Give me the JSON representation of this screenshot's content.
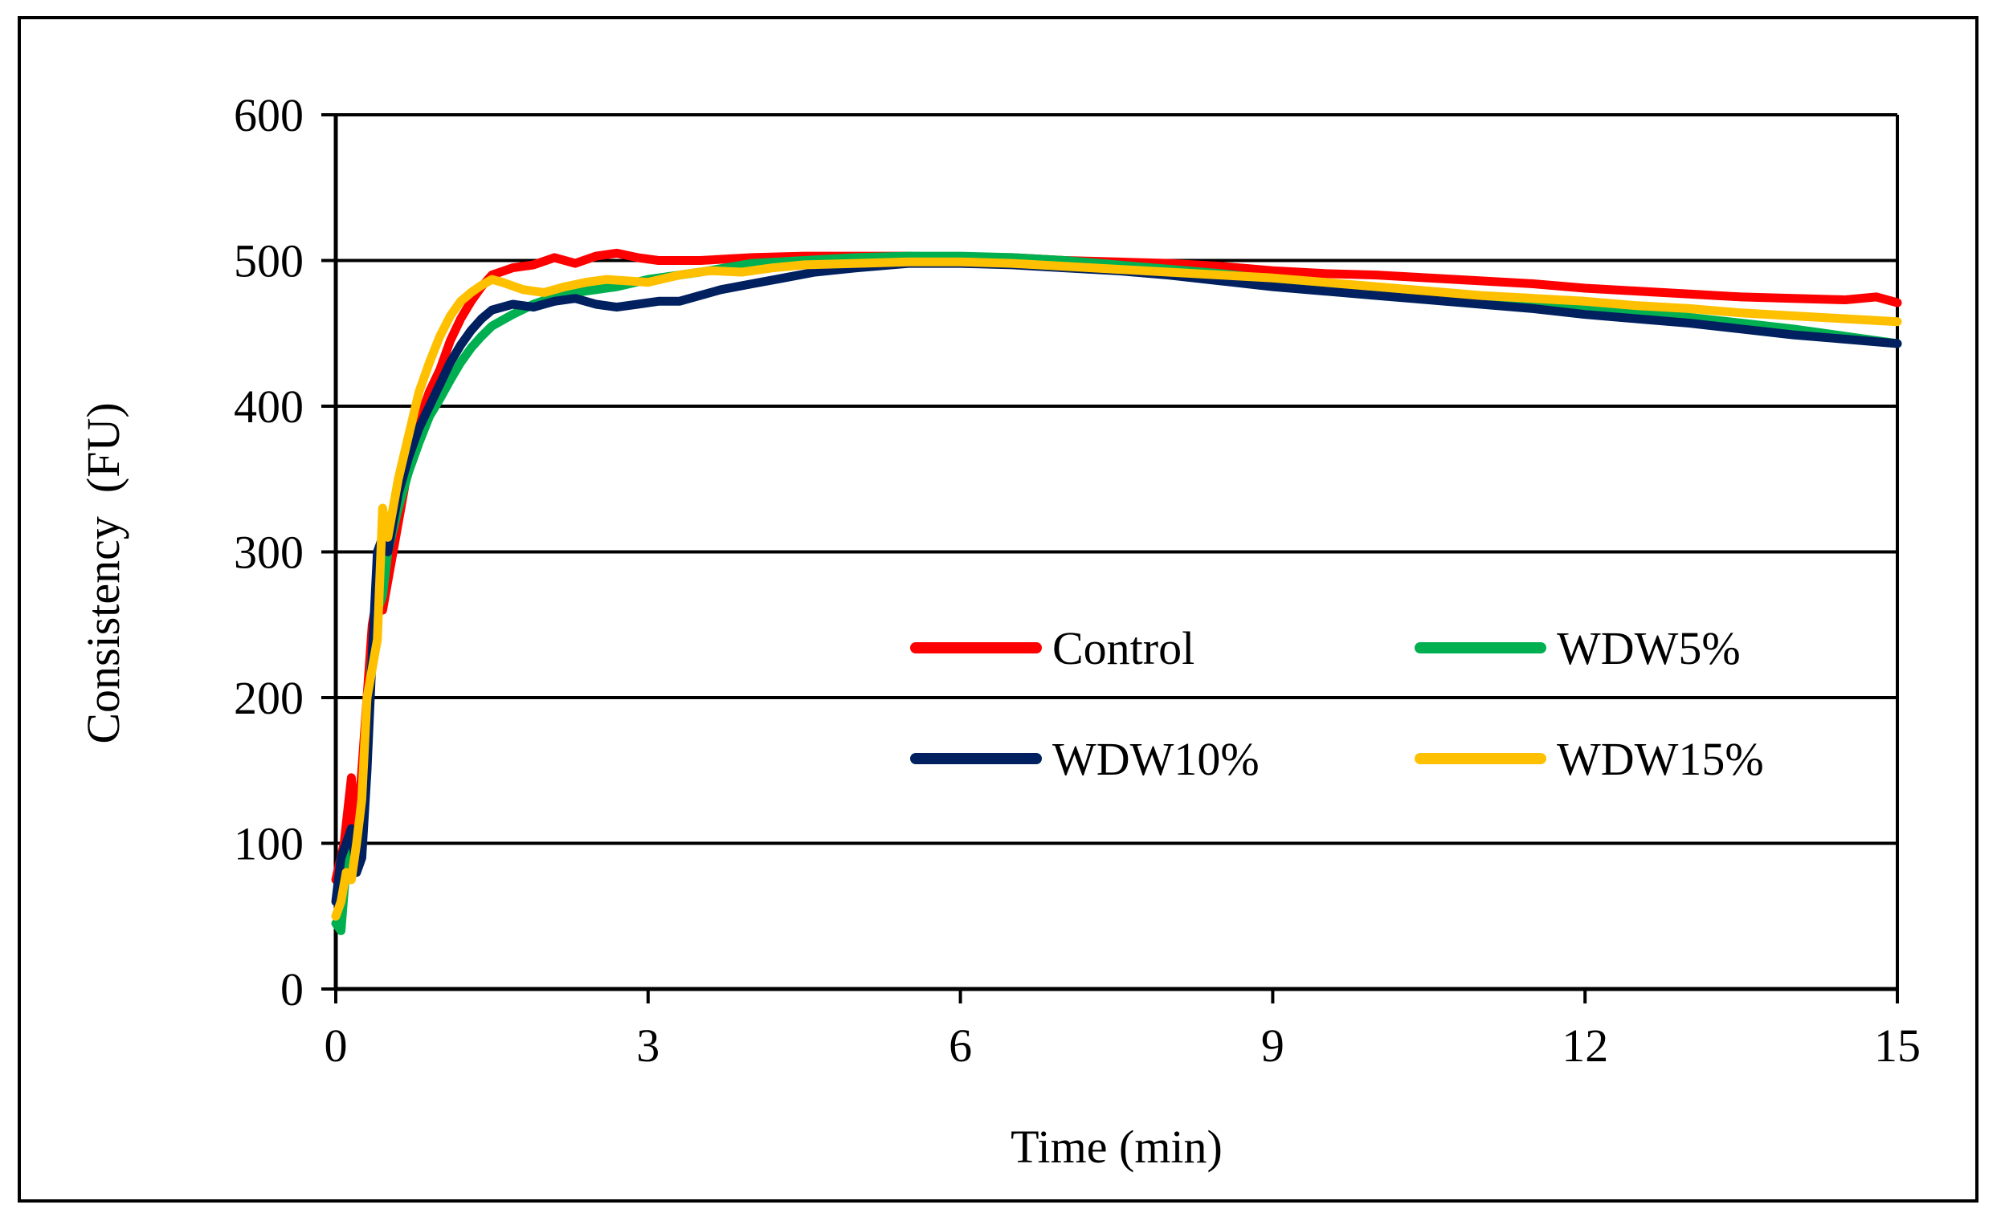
{
  "chart_data": {
    "type": "line",
    "title": "",
    "xlabel": "Time (min)",
    "ylabel": "Consistency  (FU)",
    "xlim": [
      0,
      15
    ],
    "ylim": [
      0,
      600
    ],
    "xticks": [
      0,
      3,
      6,
      9,
      12,
      15
    ],
    "yticks": [
      0,
      100,
      200,
      300,
      400,
      500,
      600
    ],
    "xtick_labels": [
      "0",
      "3",
      "6",
      "9",
      "12",
      "15"
    ],
    "ytick_labels": [
      "0",
      "100",
      "200",
      "300",
      "400",
      "500",
      "600"
    ],
    "grid": "horizontal",
    "legend_position": "center-right",
    "series": [
      {
        "name": "Control",
        "color": "#FF0000",
        "x": [
          0,
          0.08,
          0.15,
          0.2,
          0.25,
          0.3,
          0.35,
          0.4,
          0.45,
          0.5,
          0.6,
          0.7,
          0.8,
          0.9,
          1.0,
          1.1,
          1.2,
          1.3,
          1.4,
          1.5,
          1.7,
          1.9,
          2.1,
          2.3,
          2.5,
          2.7,
          2.9,
          3.1,
          3.5,
          4.0,
          4.5,
          5.0,
          5.5,
          6.0,
          6.5,
          7.0,
          7.5,
          8.0,
          8.5,
          9.0,
          9.5,
          10.0,
          10.5,
          11.0,
          11.5,
          12.0,
          12.5,
          13.0,
          13.5,
          14.0,
          14.5,
          14.8,
          15.0
        ],
        "y": [
          75,
          100,
          145,
          100,
          150,
          200,
          250,
          270,
          260,
          280,
          320,
          360,
          390,
          410,
          425,
          445,
          460,
          472,
          482,
          490,
          495,
          497,
          502,
          498,
          503,
          505,
          502,
          500,
          500,
          502,
          503,
          503,
          503,
          502,
          502,
          500,
          499,
          498,
          496,
          493,
          491,
          490,
          488,
          486,
          484,
          481,
          479,
          477,
          475,
          474,
          473,
          475,
          471
        ]
      },
      {
        "name": "WDW5%",
        "color": "#00B050",
        "x": [
          0,
          0.05,
          0.1,
          0.15,
          0.2,
          0.25,
          0.3,
          0.35,
          0.4,
          0.45,
          0.5,
          0.6,
          0.7,
          0.8,
          0.9,
          1.0,
          1.1,
          1.2,
          1.3,
          1.4,
          1.5,
          1.7,
          1.9,
          2.1,
          2.3,
          2.5,
          2.7,
          3.0,
          3.5,
          4.0,
          4.5,
          5.0,
          5.5,
          6.0,
          6.5,
          7.0,
          7.5,
          8.0,
          8.5,
          9.0,
          9.5,
          10.0,
          10.5,
          11.0,
          11.5,
          12.0,
          12.5,
          13.0,
          13.5,
          14.0,
          14.5,
          15.0
        ],
        "y": [
          45,
          40,
          85,
          100,
          95,
          130,
          180,
          230,
          260,
          270,
          300,
          330,
          355,
          375,
          393,
          405,
          418,
          430,
          440,
          448,
          455,
          463,
          470,
          475,
          478,
          480,
          482,
          487,
          492,
          498,
          500,
          502,
          503,
          503,
          502,
          500,
          497,
          494,
          491,
          487,
          484,
          481,
          478,
          475,
          472,
          469,
          465,
          461,
          457,
          453,
          448,
          443
        ]
      },
      {
        "name": "WDW10%",
        "color": "#002060",
        "x": [
          0,
          0.05,
          0.1,
          0.15,
          0.2,
          0.25,
          0.3,
          0.35,
          0.4,
          0.45,
          0.5,
          0.6,
          0.7,
          0.8,
          0.9,
          1.0,
          1.1,
          1.2,
          1.3,
          1.4,
          1.5,
          1.7,
          1.9,
          2.1,
          2.3,
          2.5,
          2.7,
          2.9,
          3.1,
          3.3,
          3.5,
          3.7,
          4.0,
          4.3,
          4.6,
          5.0,
          5.5,
          6.0,
          6.5,
          7.0,
          7.5,
          8.0,
          8.5,
          9.0,
          9.5,
          10.0,
          10.5,
          11.0,
          11.5,
          12.0,
          12.5,
          13.0,
          13.5,
          14.0,
          14.5,
          15.0
        ],
        "y": [
          60,
          90,
          100,
          110,
          80,
          90,
          150,
          230,
          300,
          310,
          300,
          340,
          365,
          385,
          400,
          415,
          430,
          442,
          452,
          460,
          466,
          470,
          468,
          472,
          474,
          470,
          468,
          470,
          472,
          472,
          476,
          480,
          484,
          488,
          492,
          495,
          498,
          498,
          497,
          495,
          493,
          490,
          486,
          482,
          479,
          476,
          473,
          470,
          467,
          463,
          460,
          457,
          453,
          449,
          446,
          443
        ]
      },
      {
        "name": "WDW15%",
        "color": "#FFC000",
        "x": [
          0,
          0.05,
          0.1,
          0.15,
          0.2,
          0.25,
          0.3,
          0.35,
          0.4,
          0.45,
          0.5,
          0.55,
          0.6,
          0.7,
          0.8,
          0.9,
          1.0,
          1.1,
          1.2,
          1.3,
          1.4,
          1.5,
          1.6,
          1.8,
          2.0,
          2.2,
          2.4,
          2.6,
          2.8,
          3.0,
          3.3,
          3.6,
          3.9,
          4.2,
          4.5,
          5.0,
          5.5,
          6.0,
          6.5,
          7.0,
          7.5,
          8.0,
          8.5,
          9.0,
          9.5,
          10.0,
          10.5,
          11.0,
          11.5,
          12.0,
          12.5,
          13.0,
          13.5,
          14.0,
          14.5,
          15.0
        ],
        "y": [
          50,
          60,
          80,
          75,
          100,
          130,
          200,
          220,
          240,
          330,
          310,
          330,
          350,
          380,
          410,
          430,
          448,
          462,
          472,
          478,
          483,
          487,
          485,
          480,
          478,
          482,
          485,
          487,
          486,
          485,
          490,
          493,
          492,
          495,
          497,
          498,
          499,
          499,
          498,
          496,
          494,
          492,
          490,
          488,
          485,
          482,
          479,
          476,
          474,
          472,
          469,
          467,
          464,
          462,
          460,
          458
        ]
      }
    ]
  }
}
